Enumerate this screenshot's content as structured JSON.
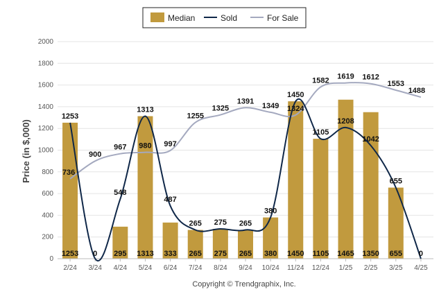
{
  "chart_data": {
    "type": "bar",
    "ylabel": "Price (in $,000)",
    "ylim": [
      0,
      2000
    ],
    "yticks": [
      0,
      200,
      400,
      600,
      800,
      1000,
      1200,
      1400,
      1600,
      1800,
      2000
    ],
    "categories": [
      "2/24",
      "3/24",
      "4/24",
      "5/24",
      "6/24",
      "7/24",
      "8/24",
      "9/24",
      "10/24",
      "11/24",
      "12/24",
      "1/25",
      "2/25",
      "3/25",
      "4/25"
    ],
    "grid": true,
    "legend_position": "top-center",
    "series": [
      {
        "name": "Median",
        "kind": "bar",
        "color": "#c19a3e",
        "values": [
          1253,
          0,
          295,
          1313,
          333,
          265,
          275,
          265,
          380,
          1450,
          1105,
          1465,
          1350,
          655,
          0
        ]
      },
      {
        "name": "Sold",
        "kind": "line",
        "color": "#0f2748",
        "values": [
          1253,
          0,
          548,
          1313,
          487,
          265,
          275,
          265,
          380,
          1450,
          1105,
          1208,
          1042,
          655,
          0
        ]
      },
      {
        "name": "For Sale",
        "kind": "line",
        "color": "#a4a9bf",
        "values": [
          736,
          900,
          967,
          980,
          997,
          1255,
          1325,
          1391,
          1349,
          1324,
          1582,
          1619,
          1612,
          1553,
          1488
        ]
      }
    ],
    "sold_labels": [
      "1253",
      "0",
      "548",
      "1313",
      "487",
      "265",
      "275",
      "265",
      "380",
      "1450",
      "1105",
      "1208",
      "1042",
      "655",
      "0"
    ],
    "for_sale_labels": [
      "736",
      "900",
      "967",
      "980",
      "997",
      "1255",
      "1325",
      "1391",
      "1349",
      "1324",
      "1582",
      "1619",
      "1612",
      "1553",
      "1488"
    ],
    "median_labels": [
      "1253",
      "0",
      "295",
      "1313",
      "333",
      "265",
      "275",
      "265",
      "380",
      "1450",
      "1105",
      "1465",
      "1350",
      "655",
      "0"
    ]
  },
  "legend": {
    "median": "Median",
    "sold": "Sold",
    "for_sale": "For Sale"
  },
  "footer": {
    "copyright": "Copyright © Trendgraphix, Inc."
  }
}
